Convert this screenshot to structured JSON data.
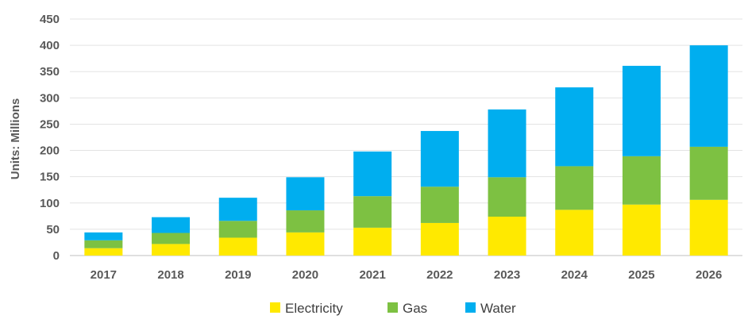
{
  "chart_data": {
    "type": "bar",
    "stacked": true,
    "title": "",
    "xlabel": "",
    "ylabel": "Units: Millions",
    "ylim": [
      0,
      450
    ],
    "yticks": [
      0,
      50,
      100,
      150,
      200,
      250,
      300,
      350,
      400,
      450
    ],
    "grid": "horizontal",
    "legend_position": "bottom",
    "categories": [
      "2017",
      "2018",
      "2019",
      "2020",
      "2021",
      "2022",
      "2023",
      "2024",
      "2025",
      "2026"
    ],
    "series": [
      {
        "name": "Electricity",
        "color": "#FFE900",
        "values": [
          14,
          22,
          34,
          44,
          53,
          62,
          74,
          87,
          97,
          106
        ]
      },
      {
        "name": "Gas",
        "color": "#7DC142",
        "values": [
          15,
          21,
          32,
          42,
          60,
          69,
          75,
          83,
          92,
          101
        ]
      },
      {
        "name": "Water",
        "color": "#00AEEF",
        "values": [
          15,
          30,
          44,
          63,
          85,
          106,
          129,
          150,
          172,
          193
        ]
      }
    ]
  }
}
